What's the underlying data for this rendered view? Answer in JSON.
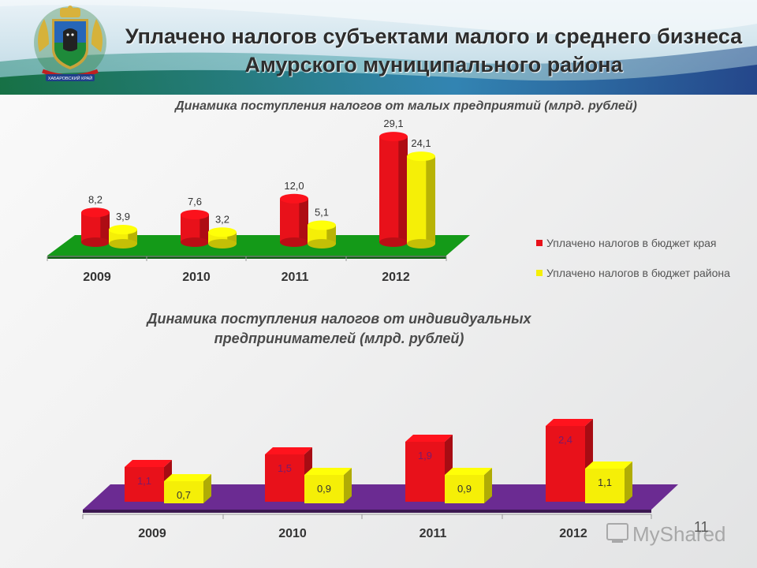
{
  "header": {
    "title": "Уплачено налогов субъектами малого и среднего бизнеса Амурского муниципального района",
    "emblem_caption": "ХАБАРОВСКИЙ КРАЙ"
  },
  "legend": {
    "red_label": "Уплачено налогов в бюджет края",
    "yellow_label": "Уплачено налогов в бюджет района",
    "red_color": "#e8111a",
    "yellow_color": "#f5ef07"
  },
  "chart_data": [
    {
      "type": "bar",
      "title": "Динамика поступления налогов от малых предприятий (млрд. рублей)",
      "categories": [
        "2009",
        "2010",
        "2011",
        "2012"
      ],
      "value_labels": {
        "red": [
          "8,2",
          "7,6",
          "12,0",
          "29,1"
        ],
        "yellow": [
          "3,9",
          "3,2",
          "5,1",
          "24,1"
        ]
      },
      "series": [
        {
          "name": "Уплачено налогов в бюджет края",
          "values": [
            8.2,
            7.6,
            12.0,
            29.1
          ]
        },
        {
          "name": "Уплачено налогов в бюджет района",
          "values": [
            3.9,
            3.2,
            5.1,
            24.1
          ]
        }
      ],
      "floor_color": "#149a18",
      "legend_position": "right"
    },
    {
      "type": "bar",
      "title": "Динамика поступления налогов от индивидуальных предпринимателей (млрд. рублей)",
      "categories": [
        "2009",
        "2010",
        "2011",
        "2012"
      ],
      "value_labels": {
        "red": [
          "1,1",
          "1,5",
          "1,9",
          "2,4"
        ],
        "yellow": [
          "0,7",
          "0,9",
          "0,9",
          "1,1"
        ]
      },
      "series": [
        {
          "name": "Уплачено налогов в бюджет края",
          "values": [
            1.1,
            1.5,
            1.9,
            2.4
          ]
        },
        {
          "name": "Уплачено налогов в бюджет района",
          "values": [
            0.7,
            0.9,
            0.9,
            1.1
          ]
        }
      ],
      "floor_color": "#6b2b92"
    }
  ],
  "page_number": "11",
  "watermark": "MyShared"
}
